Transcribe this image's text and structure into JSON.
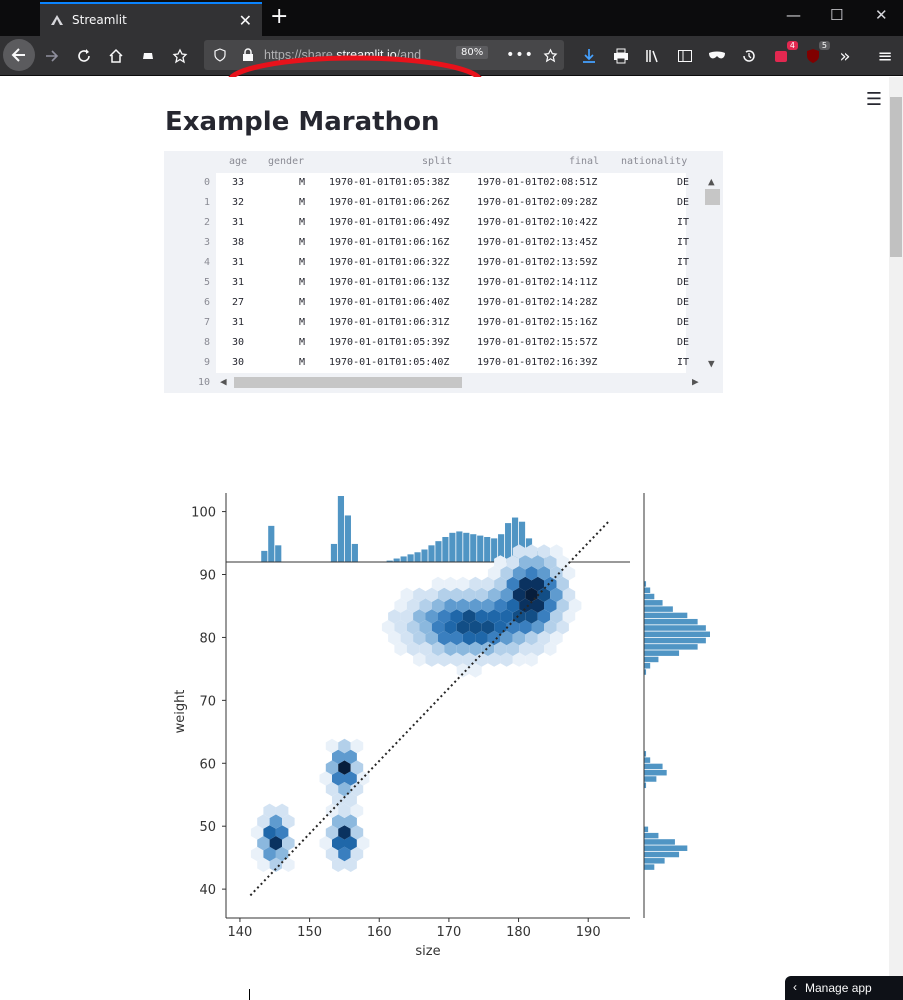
{
  "browser": {
    "tab_title": "Streamlit",
    "url_prefix": "https://share.",
    "url_domain": "streamlit.io",
    "url_suffix": "/and",
    "zoom": "80%",
    "addon_badges": [
      "4",
      "5"
    ]
  },
  "page": {
    "title": "Example Marathon",
    "manage_app": "Manage app"
  },
  "dataframe": {
    "columns": [
      "age",
      "gender",
      "split",
      "final",
      "nationality"
    ],
    "rows": [
      {
        "index": "0",
        "age": "33",
        "gender": "M",
        "split": "1970-01-01T01:05:38Z",
        "final": "1970-01-01T02:08:51Z",
        "nationality": "DE"
      },
      {
        "index": "1",
        "age": "32",
        "gender": "M",
        "split": "1970-01-01T01:06:26Z",
        "final": "1970-01-01T02:09:28Z",
        "nationality": "DE"
      },
      {
        "index": "2",
        "age": "31",
        "gender": "M",
        "split": "1970-01-01T01:06:49Z",
        "final": "1970-01-01T02:10:42Z",
        "nationality": "IT"
      },
      {
        "index": "3",
        "age": "38",
        "gender": "M",
        "split": "1970-01-01T01:06:16Z",
        "final": "1970-01-01T02:13:45Z",
        "nationality": "IT"
      },
      {
        "index": "4",
        "age": "31",
        "gender": "M",
        "split": "1970-01-01T01:06:32Z",
        "final": "1970-01-01T02:13:59Z",
        "nationality": "IT"
      },
      {
        "index": "5",
        "age": "31",
        "gender": "M",
        "split": "1970-01-01T01:06:13Z",
        "final": "1970-01-01T02:14:11Z",
        "nationality": "DE"
      },
      {
        "index": "6",
        "age": "27",
        "gender": "M",
        "split": "1970-01-01T01:06:40Z",
        "final": "1970-01-01T02:14:28Z",
        "nationality": "DE"
      },
      {
        "index": "7",
        "age": "31",
        "gender": "M",
        "split": "1970-01-01T01:06:31Z",
        "final": "1970-01-01T02:15:16Z",
        "nationality": "DE"
      },
      {
        "index": "8",
        "age": "30",
        "gender": "M",
        "split": "1970-01-01T01:05:39Z",
        "final": "1970-01-01T02:15:57Z",
        "nationality": "DE"
      },
      {
        "index": "9",
        "age": "30",
        "gender": "M",
        "split": "1970-01-01T01:05:40Z",
        "final": "1970-01-01T02:16:39Z",
        "nationality": "IT"
      }
    ],
    "partial_index": "10"
  },
  "chart_data": {
    "type": "scatter",
    "subtype": "hexbin jointplot with marginal histograms",
    "xlabel": "size",
    "ylabel": "weight",
    "xlim": [
      138,
      196
    ],
    "ylim": [
      37,
      102
    ],
    "xticks": [
      "140",
      "150",
      "160",
      "170",
      "180",
      "190"
    ],
    "yticks": [
      "40",
      "50",
      "60",
      "70",
      "80",
      "90",
      "100"
    ],
    "color": "#1f77b4",
    "clusters": [
      {
        "x": 145,
        "y": 48,
        "density": "high"
      },
      {
        "x": 155,
        "y": 48,
        "density": "high"
      },
      {
        "x": 155,
        "y": 59,
        "density": "high"
      },
      {
        "x": 173,
        "y": 82,
        "density": "medium"
      },
      {
        "x": 182,
        "y": 87,
        "density": "high"
      }
    ],
    "regression_line": {
      "x": [
        141.5,
        193
      ],
      "y": [
        39,
        98.5
      ]
    },
    "top_histogram": {
      "x": [
        143.5,
        144.5,
        145.5,
        146.5,
        153.5,
        154.5,
        155.5,
        156.5,
        161.5,
        162.5,
        163.5,
        164.5,
        165.5,
        166.5,
        167.5,
        168.5,
        169.5,
        170.5,
        171.5,
        172.5,
        173.5,
        174.5,
        175.5,
        176.5,
        177.5,
        178.5,
        179.5,
        180.5,
        181.5,
        182.5,
        183.5,
        184.5,
        185.5,
        186.5
      ],
      "counts": [
        16,
        52,
        24,
        0,
        26,
        95,
        67,
        26,
        2,
        5,
        8,
        11,
        14,
        18,
        24,
        30,
        36,
        42,
        44,
        42,
        40,
        38,
        36,
        34,
        40,
        56,
        64,
        58,
        34,
        16,
        8,
        4,
        2,
        0
      ]
    },
    "right_histogram": {
      "y": [
        43.5,
        44.5,
        45.5,
        46.5,
        47.5,
        48.5,
        49.5,
        50.5,
        56.5,
        57.5,
        58.5,
        59.5,
        60.5,
        61.5,
        74.5,
        75.5,
        76.5,
        77.5,
        78.5,
        79.5,
        80.5,
        81.5,
        82.5,
        83.5,
        84.5,
        85.5,
        86.5,
        87.5,
        88.5,
        89.5,
        90.5,
        91.5
      ],
      "counts": [
        10,
        20,
        34,
        42,
        30,
        14,
        4,
        0,
        2,
        12,
        22,
        18,
        6,
        2,
        2,
        6,
        14,
        34,
        52,
        60,
        64,
        60,
        52,
        42,
        28,
        18,
        10,
        6,
        2,
        0,
        0,
        0
      ]
    }
  }
}
